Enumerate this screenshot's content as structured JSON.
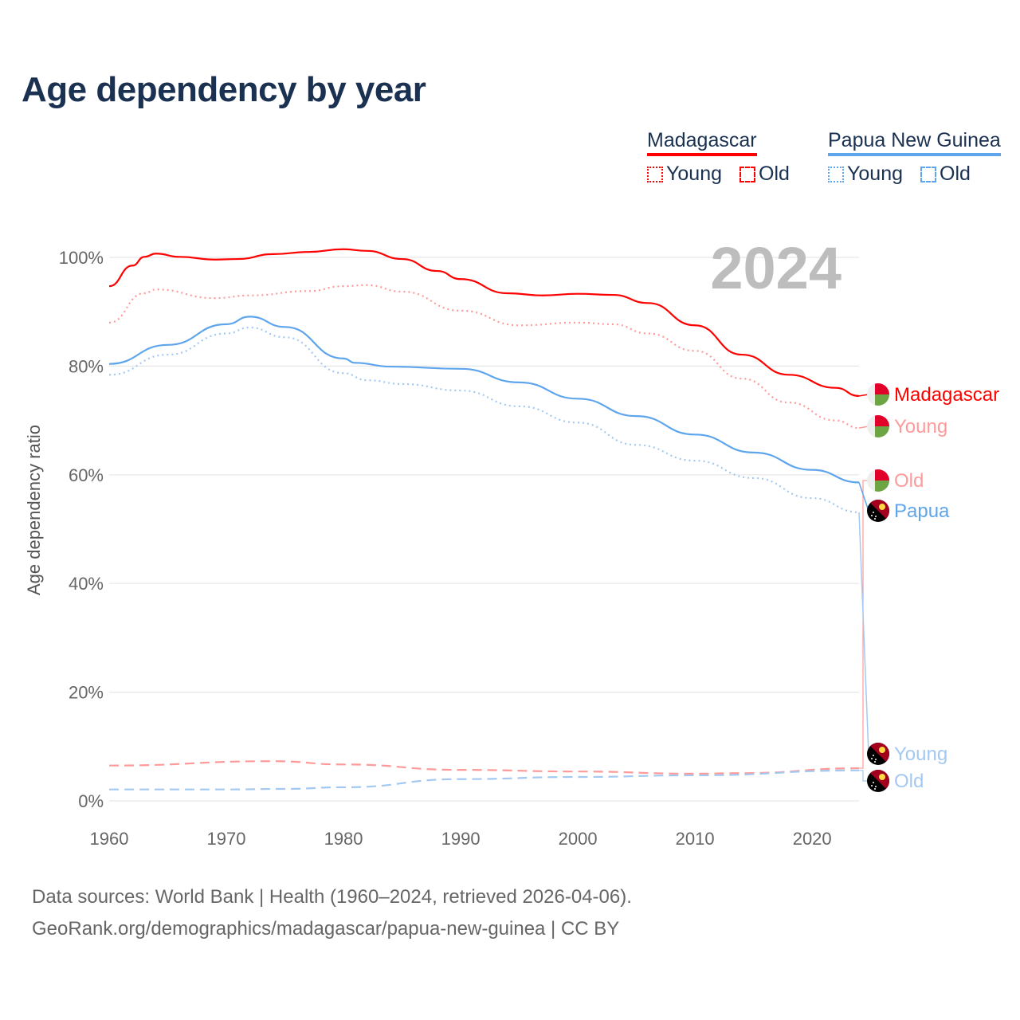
{
  "chart_data": {
    "type": "line",
    "title": "Age dependency by year",
    "year_label": "2024",
    "xlabel": "",
    "ylabel": "Age dependency ratio",
    "xlim": [
      1960,
      2024
    ],
    "ylim": [
      0,
      100
    ],
    "x_ticks": [
      "1960",
      "1970",
      "1980",
      "1990",
      "2000",
      "2010",
      "2020"
    ],
    "y_ticks": [
      "0%",
      "20%",
      "40%",
      "60%",
      "80%",
      "100%"
    ],
    "grid": true,
    "legend_position": "top-right",
    "legend": [
      {
        "country": "Madagascar",
        "color": "#ff0000",
        "items": [
          "Young",
          "Old"
        ]
      },
      {
        "country": "Papua New Guinea",
        "color": "#5ea5ec",
        "items": [
          "Young",
          "Old"
        ]
      }
    ],
    "series": [
      {
        "name": "Madagascar",
        "end_label": "Madagascar",
        "flag": "madagascar",
        "color": "#ff0000",
        "style": "solid",
        "points": [
          [
            1960,
            94.7
          ],
          [
            1962,
            98.5
          ],
          [
            1963,
            100.1
          ],
          [
            1964,
            100.7
          ],
          [
            1966,
            100.1
          ],
          [
            1969,
            99.6
          ],
          [
            1971,
            99.7
          ],
          [
            1974,
            100.6
          ],
          [
            1977,
            101
          ],
          [
            1980,
            101.5
          ],
          [
            1982,
            101.2
          ],
          [
            1985,
            99.7
          ],
          [
            1988,
            97.5
          ],
          [
            1990,
            96
          ],
          [
            1994,
            93.4
          ],
          [
            1997,
            93
          ],
          [
            2000,
            93.3
          ],
          [
            2003,
            93.1
          ],
          [
            2006,
            91.6
          ],
          [
            2010,
            87.5
          ],
          [
            2014,
            82.1
          ],
          [
            2018,
            78.4
          ],
          [
            2022,
            76
          ],
          [
            2024,
            74.5
          ]
        ]
      },
      {
        "name": "Madagascar Young",
        "end_label": "Young",
        "flag": "madagascar",
        "color": "#ff9a9a",
        "style": "dotted",
        "points": [
          [
            1960,
            88
          ],
          [
            1963,
            93.4
          ],
          [
            1964,
            94.1
          ],
          [
            1969,
            92.5
          ],
          [
            1972,
            93
          ],
          [
            1977,
            93.8
          ],
          [
            1980,
            94.7
          ],
          [
            1982,
            94.9
          ],
          [
            1985,
            93.7
          ],
          [
            1990,
            90.2
          ],
          [
            1995,
            87.5
          ],
          [
            2000,
            88
          ],
          [
            2003,
            87.7
          ],
          [
            2006,
            86
          ],
          [
            2010,
            82.8
          ],
          [
            2014,
            77.7
          ],
          [
            2018,
            73.3
          ],
          [
            2022,
            70
          ],
          [
            2024,
            68.6
          ]
        ]
      },
      {
        "name": "Madagascar Old",
        "end_label": "Old",
        "flag": "madagascar",
        "color": "#ff9a9a",
        "style": "dashed",
        "points": [
          [
            1960,
            6.5
          ],
          [
            1974,
            7.3
          ],
          [
            1980,
            6.7
          ],
          [
            1990,
            5.7
          ],
          [
            2000,
            5.4
          ],
          [
            2010,
            5
          ],
          [
            2014,
            5.1
          ],
          [
            2024,
            6
          ]
        ]
      },
      {
        "name": "Papua New Guinea",
        "end_label": "Papua",
        "flag": "png",
        "color": "#5ea5ec",
        "style": "solid",
        "points": [
          [
            1960,
            80.4
          ],
          [
            1965,
            83.9
          ],
          [
            1970,
            87.7
          ],
          [
            1972,
            89.1
          ],
          [
            1975,
            87.2
          ],
          [
            1980,
            81.4
          ],
          [
            1981,
            80.6
          ],
          [
            1984,
            79.9
          ],
          [
            1990,
            79.5
          ],
          [
            1995,
            77
          ],
          [
            2000,
            74
          ],
          [
            2005,
            70.8
          ],
          [
            2010,
            67.4
          ],
          [
            2015,
            64.1
          ],
          [
            2020,
            60.9
          ],
          [
            2024,
            58.6
          ]
        ]
      },
      {
        "name": "Papua New Guinea Young",
        "end_label": "Young",
        "flag": "png",
        "color": "#a3c9f2",
        "style": "dotted",
        "points": [
          [
            1960,
            78.4
          ],
          [
            1965,
            82.1
          ],
          [
            1970,
            86
          ],
          [
            1972,
            87.1
          ],
          [
            1975,
            85.3
          ],
          [
            1980,
            78.7
          ],
          [
            1982,
            77.4
          ],
          [
            1985,
            76.7
          ],
          [
            1990,
            75.5
          ],
          [
            1995,
            72.6
          ],
          [
            2000,
            69.6
          ],
          [
            2005,
            65.5
          ],
          [
            2010,
            62.6
          ],
          [
            2015,
            59.4
          ],
          [
            2020,
            55.7
          ],
          [
            2024,
            53.1
          ]
        ]
      },
      {
        "name": "Papua New Guinea Old",
        "end_label": "Old",
        "flag": "png",
        "color": "#a3c9f2",
        "style": "dashed",
        "points": [
          [
            1960,
            2.1
          ],
          [
            1970,
            2.1
          ],
          [
            1975,
            2.2
          ],
          [
            1980,
            2.5
          ],
          [
            1990,
            4
          ],
          [
            2000,
            4.4
          ],
          [
            2010,
            4.7
          ],
          [
            2024,
            5.6
          ]
        ]
      }
    ]
  },
  "footer": {
    "line1": "Data sources: World Bank | Health (1960–2024, retrieved 2026-04-06).",
    "line2": "GeoRank.org/demographics/madagascar/papua-new-guinea | CC BY"
  }
}
